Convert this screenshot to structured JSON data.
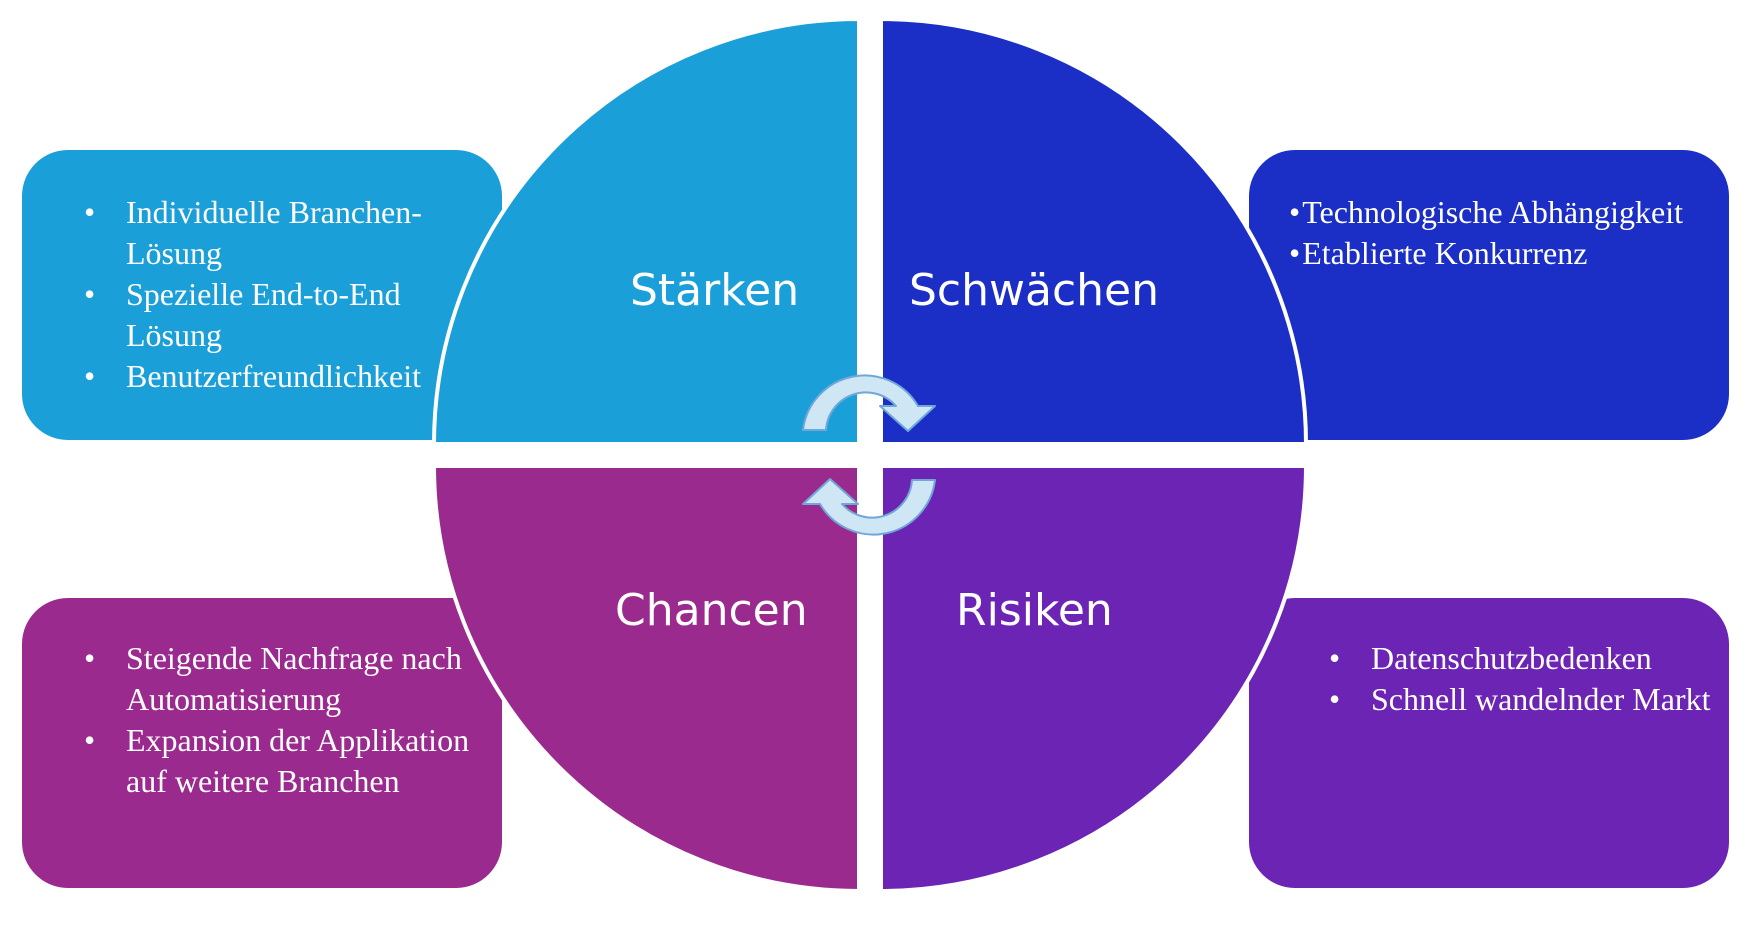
{
  "colors": {
    "staerken": "#1A9FD8",
    "schwaechen": "#1B2EC6",
    "chancen": "#9A2A8E",
    "risiken": "#6B24B4",
    "arrow_fill": "#CFE6F5",
    "arrow_stroke": "#6FA8D8"
  },
  "quadrants": {
    "staerken": {
      "label": "Stärken"
    },
    "schwaechen": {
      "label": "Schwächen"
    },
    "chancen": {
      "label": "Chancen"
    },
    "risiken": {
      "label": "Risiken"
    }
  },
  "boxes": {
    "staerken": {
      "items": [
        "Individuelle Branchen-Lösung",
        "Spezielle End-to-End Lösung",
        "Benutzerfreundlichkeit"
      ]
    },
    "schwaechen": {
      "bullet": "•",
      "items": [
        "Technologische Abhängigkeit",
        "Etablierte Konkurrenz"
      ]
    },
    "chancen": {
      "items": [
        "Steigende Nachfrage nach Automatisierung",
        "Expansion der Applikation auf weitere Branchen"
      ]
    },
    "risiken": {
      "items": [
        "Datenschutzbedenken",
        "Schnell wandelnder Markt"
      ]
    }
  },
  "icons": [
    "cycle-arrow-top-icon",
    "cycle-arrow-bottom-icon"
  ]
}
